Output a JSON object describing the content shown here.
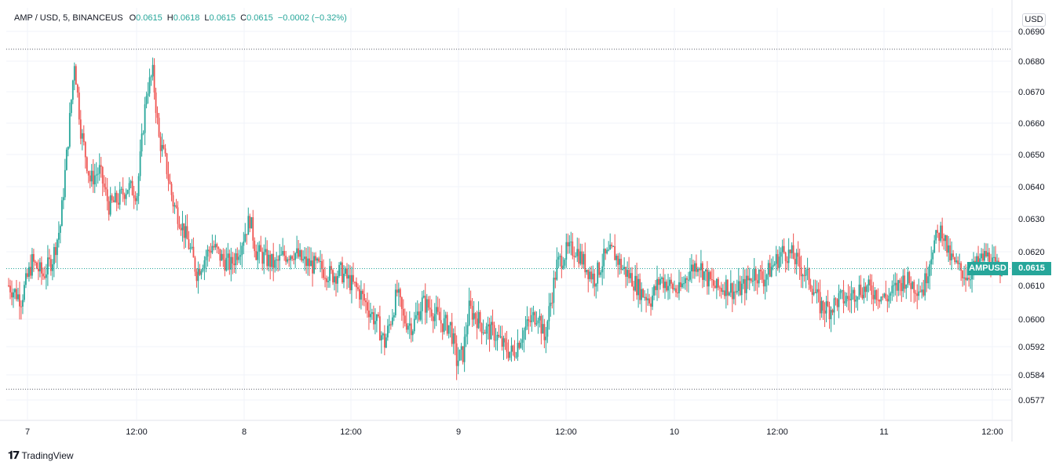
{
  "header": {
    "symbol": "AMP / USD, 5, BINANCEUS",
    "open_label": "O",
    "open": "0.0615",
    "high_label": "H",
    "high": "0.0618",
    "low_label": "L",
    "low": "0.0615",
    "close_label": "C",
    "close": "0.0615",
    "change": "−0.0002 (−0.32%)"
  },
  "currency_button": "USD",
  "branding": {
    "name": "TradingView",
    "logo_icon": "tradingview-logo-icon"
  },
  "last_price": {
    "symbol_tag": "AMPUSD",
    "value": "0.0615"
  },
  "colors": {
    "up": "#26a69a",
    "down": "#ef5350",
    "grid": "#f0f3fa",
    "text": "#131722"
  },
  "chart_data": {
    "type": "candlestick",
    "interval": "5",
    "y_axis_labels": [
      "0.0690",
      "0.0680",
      "0.0670",
      "0.0660",
      "0.0650",
      "0.0640",
      "0.0630",
      "0.0620",
      "0.0610",
      "0.0600",
      "0.0592",
      "0.0584",
      "0.0577"
    ],
    "x_axis_labels": [
      "7",
      "12:00",
      "8",
      "12:00",
      "9",
      "12:00",
      "10",
      "12:00",
      "11",
      "12:00"
    ],
    "ylim": [
      0.0573,
      0.0693
    ],
    "high_line": 0.0684,
    "low_line": 0.058,
    "last_price": 0.0615,
    "price_path": [
      [
        0,
        0.061
      ],
      [
        8,
        0.0606
      ],
      [
        15,
        0.0617
      ],
      [
        22,
        0.0613
      ],
      [
        28,
        0.0618
      ],
      [
        33,
        0.0628
      ],
      [
        38,
        0.0655
      ],
      [
        42,
        0.068
      ],
      [
        46,
        0.0658
      ],
      [
        52,
        0.0642
      ],
      [
        58,
        0.0645
      ],
      [
        64,
        0.0634
      ],
      [
        70,
        0.0636
      ],
      [
        76,
        0.064
      ],
      [
        82,
        0.0638
      ],
      [
        88,
        0.067
      ],
      [
        92,
        0.0676
      ],
      [
        96,
        0.0655
      ],
      [
        100,
        0.0648
      ],
      [
        105,
        0.0635
      ],
      [
        110,
        0.0629
      ],
      [
        115,
        0.0622
      ],
      [
        120,
        0.0614
      ],
      [
        125,
        0.0618
      ],
      [
        130,
        0.0622
      ],
      [
        136,
        0.0618
      ],
      [
        142,
        0.0616
      ],
      [
        148,
        0.0622
      ],
      [
        154,
        0.063
      ],
      [
        158,
        0.062
      ],
      [
        164,
        0.0618
      ],
      [
        170,
        0.0616
      ],
      [
        176,
        0.0619
      ],
      [
        182,
        0.062
      ],
      [
        188,
        0.0617
      ],
      [
        194,
        0.0616
      ],
      [
        200,
        0.0615
      ],
      [
        206,
        0.0613
      ],
      [
        212,
        0.0614
      ],
      [
        218,
        0.0611
      ],
      [
        224,
        0.0608
      ],
      [
        230,
        0.0603
      ],
      [
        236,
        0.0598
      ],
      [
        240,
        0.0593
      ],
      [
        244,
        0.06
      ],
      [
        248,
        0.0608
      ],
      [
        252,
        0.06
      ],
      [
        258,
        0.0598
      ],
      [
        264,
        0.0605
      ],
      [
        270,
        0.0603
      ],
      [
        276,
        0.0599
      ],
      [
        282,
        0.0598
      ],
      [
        286,
        0.0588
      ],
      [
        290,
        0.059
      ],
      [
        294,
        0.0603
      ],
      [
        298,
        0.0601
      ],
      [
        304,
        0.0597
      ],
      [
        310,
        0.0596
      ],
      [
        316,
        0.0592
      ],
      [
        322,
        0.059
      ],
      [
        328,
        0.0596
      ],
      [
        334,
        0.06
      ],
      [
        338,
        0.0602
      ],
      [
        342,
        0.0594
      ],
      [
        346,
        0.0605
      ],
      [
        350,
        0.0616
      ],
      [
        356,
        0.062
      ],
      [
        362,
        0.0621
      ],
      [
        368,
        0.0616
      ],
      [
        374,
        0.0612
      ],
      [
        380,
        0.0618
      ],
      [
        386,
        0.062
      ],
      [
        392,
        0.0615
      ],
      [
        398,
        0.0612
      ],
      [
        404,
        0.0608
      ],
      [
        410,
        0.0606
      ],
      [
        416,
        0.0612
      ],
      [
        422,
        0.061
      ],
      [
        428,
        0.0608
      ],
      [
        434,
        0.0614
      ],
      [
        440,
        0.0617
      ],
      [
        446,
        0.0612
      ],
      [
        452,
        0.0609
      ],
      [
        458,
        0.061
      ],
      [
        464,
        0.0608
      ],
      [
        470,
        0.061
      ],
      [
        476,
        0.0614
      ],
      [
        482,
        0.0612
      ],
      [
        488,
        0.0616
      ],
      [
        494,
        0.062
      ],
      [
        500,
        0.0619
      ],
      [
        506,
        0.0615
      ],
      [
        512,
        0.0611
      ],
      [
        518,
        0.0604
      ],
      [
        524,
        0.0603
      ],
      [
        530,
        0.0606
      ],
      [
        536,
        0.0606
      ],
      [
        542,
        0.0609
      ],
      [
        548,
        0.0609
      ],
      [
        554,
        0.0608
      ],
      [
        560,
        0.0606
      ],
      [
        566,
        0.0609
      ],
      [
        572,
        0.0612
      ],
      [
        578,
        0.061
      ],
      [
        584,
        0.0609
      ],
      [
        590,
        0.0622
      ],
      [
        596,
        0.0627
      ],
      [
        600,
        0.0619
      ],
      [
        606,
        0.0615
      ],
      [
        612,
        0.0613
      ],
      [
        618,
        0.0616
      ],
      [
        624,
        0.0619
      ],
      [
        630,
        0.0615
      ],
      [
        634,
        0.0615
      ]
    ]
  }
}
